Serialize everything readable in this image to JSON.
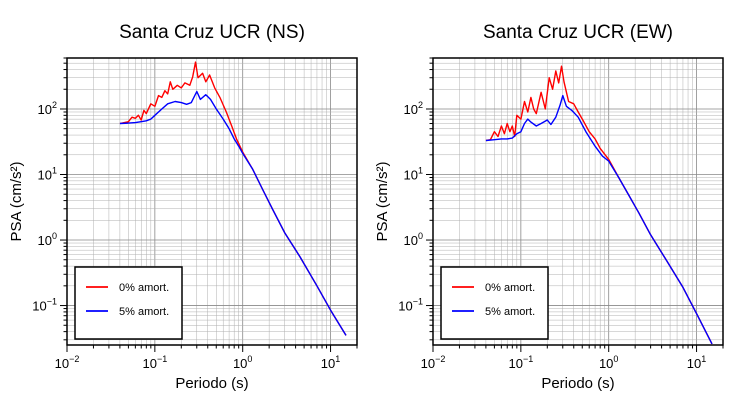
{
  "chart_data": [
    {
      "type": "line",
      "title": "Santa Cruz UCR (NS)",
      "xlabel": "Periodo (s)",
      "ylabel": "PSA (cm/s²)",
      "xscale": "log",
      "yscale": "log",
      "xlim": [
        0.01,
        20
      ],
      "ylim": [
        0.025,
        600
      ],
      "x_ticks": [
        "10⁻²",
        "10⁻¹",
        "10⁰",
        "10¹"
      ],
      "y_ticks": [
        "10⁻¹",
        "10⁰",
        "10¹",
        "10²"
      ],
      "grid": true,
      "legend": {
        "position": "bottom-left",
        "entries": [
          "0% amort.",
          "5% amort."
        ]
      },
      "series": [
        {
          "name": "0% amort.",
          "color": "#ff0000",
          "points": [
            [
              0.04,
              60
            ],
            [
              0.045,
              62
            ],
            [
              0.05,
              64
            ],
            [
              0.055,
              75
            ],
            [
              0.06,
              72
            ],
            [
              0.065,
              80
            ],
            [
              0.07,
              68
            ],
            [
              0.075,
              95
            ],
            [
              0.08,
              85
            ],
            [
              0.09,
              120
            ],
            [
              0.1,
              110
            ],
            [
              0.11,
              160
            ],
            [
              0.12,
              150
            ],
            [
              0.13,
              190
            ],
            [
              0.14,
              170
            ],
            [
              0.15,
              260
            ],
            [
              0.16,
              200
            ],
            [
              0.18,
              230
            ],
            [
              0.2,
              210
            ],
            [
              0.22,
              250
            ],
            [
              0.25,
              230
            ],
            [
              0.27,
              310
            ],
            [
              0.29,
              520
            ],
            [
              0.31,
              300
            ],
            [
              0.35,
              350
            ],
            [
              0.38,
              260
            ],
            [
              0.42,
              330
            ],
            [
              0.48,
              210
            ],
            [
              0.55,
              150
            ],
            [
              0.65,
              90
            ],
            [
              0.75,
              55
            ],
            [
              0.85,
              35
            ],
            [
              1.0,
              22
            ],
            [
              1.3,
              12
            ],
            [
              1.7,
              5.8
            ],
            [
              2.2,
              2.9
            ],
            [
              3.0,
              1.3
            ],
            [
              4.5,
              0.55
            ],
            [
              7,
              0.2
            ],
            [
              10,
              0.085
            ],
            [
              15,
              0.035
            ]
          ]
        },
        {
          "name": "5% amort.",
          "color": "#0000ff",
          "points": [
            [
              0.04,
              60
            ],
            [
              0.05,
              61
            ],
            [
              0.06,
              62
            ],
            [
              0.07,
              64
            ],
            [
              0.08,
              66
            ],
            [
              0.09,
              70
            ],
            [
              0.1,
              80
            ],
            [
              0.12,
              100
            ],
            [
              0.14,
              120
            ],
            [
              0.17,
              130
            ],
            [
              0.2,
              125
            ],
            [
              0.23,
              118
            ],
            [
              0.26,
              125
            ],
            [
              0.3,
              185
            ],
            [
              0.33,
              140
            ],
            [
              0.38,
              165
            ],
            [
              0.43,
              140
            ],
            [
              0.5,
              100
            ],
            [
              0.6,
              70
            ],
            [
              0.7,
              50
            ],
            [
              0.8,
              35
            ],
            [
              0.9,
              27
            ],
            [
              1.0,
              21
            ],
            [
              1.3,
              12
            ],
            [
              1.7,
              5.8
            ],
            [
              2.2,
              2.9
            ],
            [
              3.0,
              1.3
            ],
            [
              4.5,
              0.55
            ],
            [
              7,
              0.2
            ],
            [
              10,
              0.085
            ],
            [
              15,
              0.035
            ]
          ]
        }
      ]
    },
    {
      "type": "line",
      "title": "Santa Cruz UCR (EW)",
      "xlabel": "Periodo (s)",
      "ylabel": "PSA (cm/s²)",
      "xscale": "log",
      "yscale": "log",
      "xlim": [
        0.01,
        20
      ],
      "ylim": [
        0.025,
        600
      ],
      "x_ticks": [
        "10⁻²",
        "10⁻¹",
        "10⁰",
        "10¹"
      ],
      "y_ticks": [
        "10⁻¹",
        "10⁰",
        "10¹",
        "10²"
      ],
      "grid": true,
      "legend": {
        "position": "bottom-left",
        "entries": [
          "0% amort.",
          "5% amort."
        ]
      },
      "series": [
        {
          "name": "0% amort.",
          "color": "#ff0000",
          "points": [
            [
              0.04,
              33
            ],
            [
              0.045,
              34
            ],
            [
              0.05,
              45
            ],
            [
              0.055,
              38
            ],
            [
              0.06,
              55
            ],
            [
              0.065,
              42
            ],
            [
              0.07,
              60
            ],
            [
              0.075,
              45
            ],
            [
              0.08,
              55
            ],
            [
              0.085,
              38
            ],
            [
              0.09,
              80
            ],
            [
              0.1,
              70
            ],
            [
              0.11,
              130
            ],
            [
              0.12,
              90
            ],
            [
              0.13,
              150
            ],
            [
              0.14,
              100
            ],
            [
              0.15,
              85
            ],
            [
              0.17,
              180
            ],
            [
              0.19,
              100
            ],
            [
              0.21,
              300
            ],
            [
              0.23,
              200
            ],
            [
              0.25,
              380
            ],
            [
              0.27,
              250
            ],
            [
              0.29,
              450
            ],
            [
              0.31,
              260
            ],
            [
              0.35,
              130
            ],
            [
              0.4,
              120
            ],
            [
              0.45,
              90
            ],
            [
              0.5,
              70
            ],
            [
              0.6,
              45
            ],
            [
              0.7,
              35
            ],
            [
              0.8,
              25
            ],
            [
              1.0,
              17
            ],
            [
              1.3,
              9
            ],
            [
              1.7,
              4.8
            ],
            [
              2.2,
              2.6
            ],
            [
              3.0,
              1.2
            ],
            [
              4.5,
              0.5
            ],
            [
              7,
              0.19
            ],
            [
              10,
              0.075
            ],
            [
              15,
              0.026
            ]
          ]
        },
        {
          "name": "5% amort.",
          "color": "#0000ff",
          "points": [
            [
              0.04,
              33
            ],
            [
              0.05,
              34
            ],
            [
              0.06,
              35
            ],
            [
              0.07,
              35
            ],
            [
              0.08,
              36
            ],
            [
              0.09,
              42
            ],
            [
              0.1,
              45
            ],
            [
              0.11,
              60
            ],
            [
              0.12,
              70
            ],
            [
              0.13,
              63
            ],
            [
              0.15,
              55
            ],
            [
              0.17,
              60
            ],
            [
              0.2,
              68
            ],
            [
              0.22,
              58
            ],
            [
              0.25,
              75
            ],
            [
              0.28,
              115
            ],
            [
              0.3,
              160
            ],
            [
              0.33,
              110
            ],
            [
              0.38,
              95
            ],
            [
              0.45,
              75
            ],
            [
              0.55,
              45
            ],
            [
              0.7,
              27
            ],
            [
              0.85,
              19
            ],
            [
              1.0,
              16
            ],
            [
              1.3,
              9
            ],
            [
              1.7,
              4.8
            ],
            [
              2.2,
              2.6
            ],
            [
              3.0,
              1.2
            ],
            [
              4.5,
              0.5
            ],
            [
              7,
              0.19
            ],
            [
              10,
              0.075
            ],
            [
              15,
              0.026
            ]
          ]
        }
      ]
    }
  ]
}
